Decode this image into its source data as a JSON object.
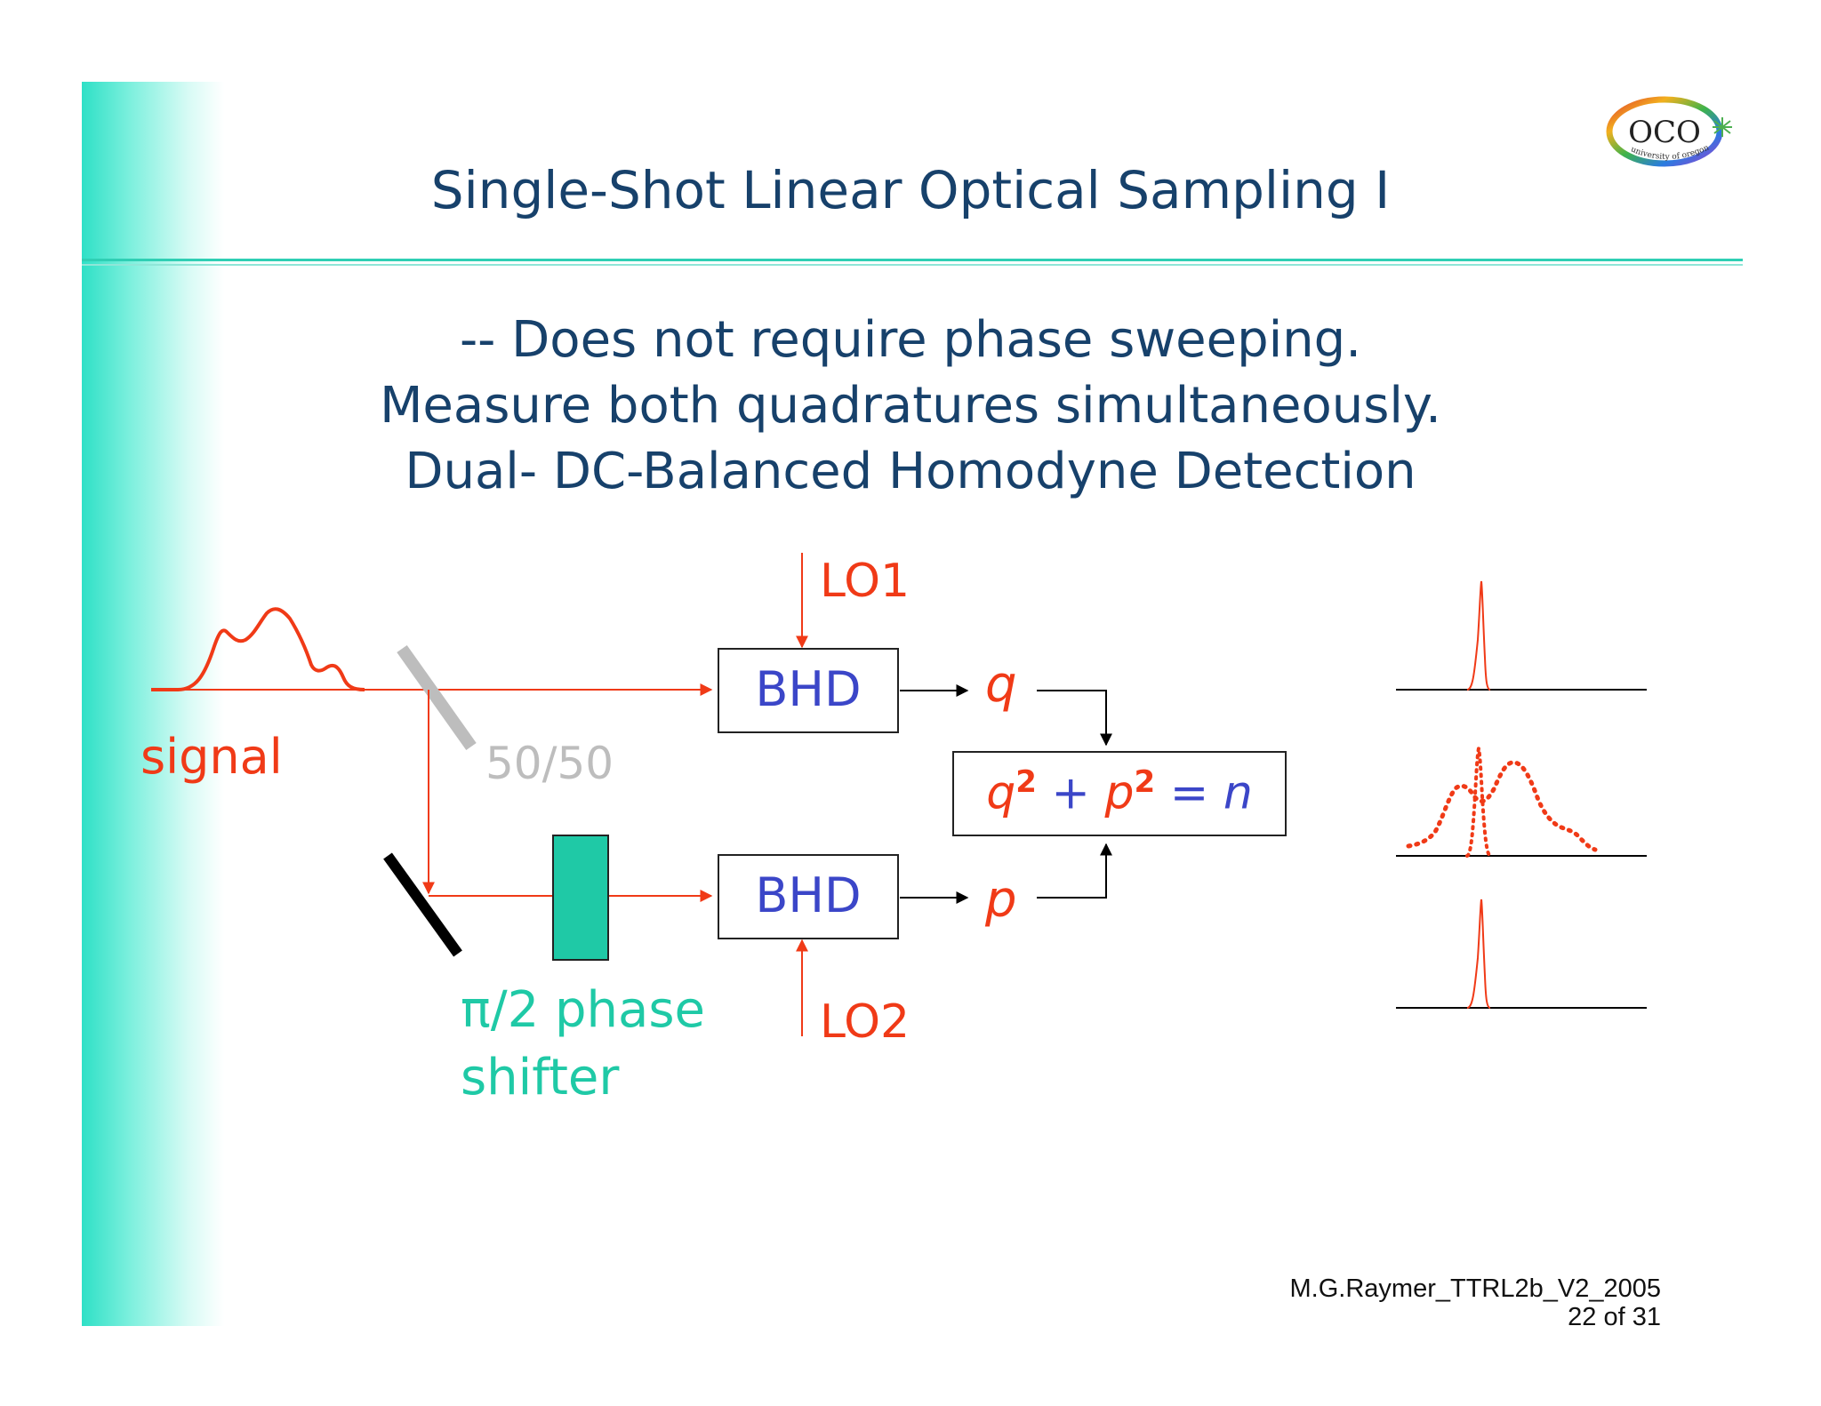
{
  "slide": {
    "title": "Single-Shot Linear Optical Sampling I",
    "lines": [
      "--  Does not require phase sweeping.",
      "Measure both quadratures simultaneously.",
      "Dual- DC-Balanced Homodyne Detection"
    ],
    "logo": {
      "text": "OCO",
      "arc_text": "university of oregon"
    },
    "footer": {
      "author": "M.G.Raymer_TTRL2b_V2_2005",
      "page": "22 of 31"
    }
  },
  "diagram": {
    "signal_label": "signal",
    "splitter_label": "50/50",
    "lo1_label": "LO1",
    "lo2_label": "LO2",
    "bhd_top": "BHD",
    "bhd_bottom": "BHD",
    "q_label": "q",
    "p_label": "p",
    "equation": {
      "q": "q",
      "q_exp": "2",
      "plus": "+",
      "p": "p",
      "p_exp": "2",
      "eq": "=",
      "n": "n"
    },
    "phase_shifter_label_line1": "π/2 phase",
    "phase_shifter_label_line2": "shifter"
  },
  "colors": {
    "title": "#17416b",
    "red": "#f03a17",
    "blue": "#3b46c8",
    "teal": "#1fc9a6",
    "gray": "#bdbdbd",
    "accent_bar": "#2ee0c6"
  }
}
